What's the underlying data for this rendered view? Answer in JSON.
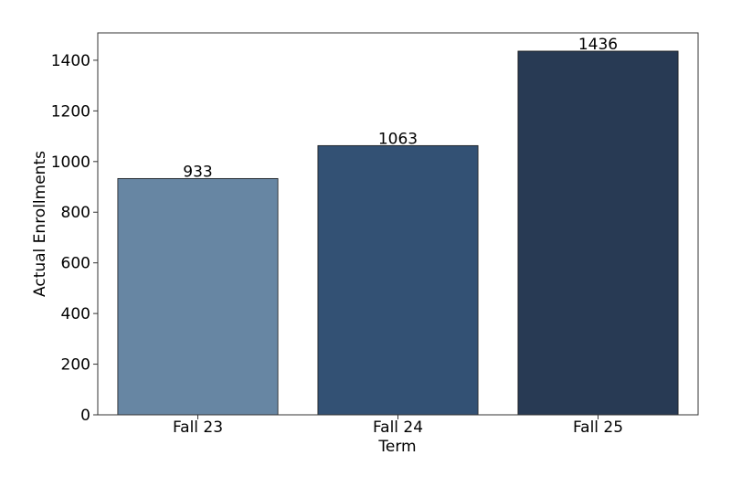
{
  "chart_data": {
    "type": "bar",
    "xlabel": "Term",
    "ylabel": "Actual Enrollments",
    "categories": [
      "Fall 23",
      "Fall 24",
      "Fall 25"
    ],
    "values": [
      933,
      1063,
      1436
    ],
    "colors": [
      "#6786a3",
      "#335174",
      "#283a54"
    ],
    "ylim": [
      0,
      1508
    ],
    "yticks": [
      0,
      200,
      400,
      600,
      800,
      1000,
      1200,
      1400
    ],
    "grid": false
  }
}
